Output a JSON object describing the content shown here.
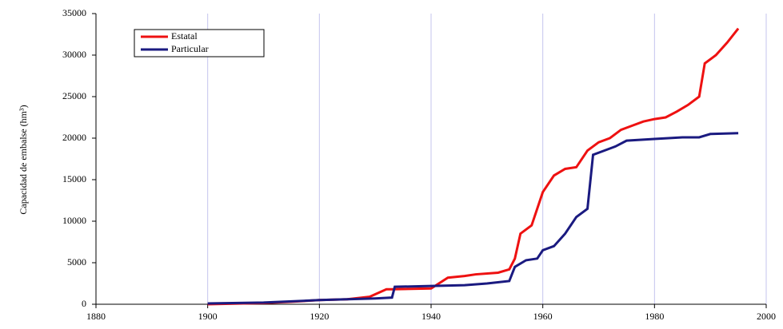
{
  "chart_data": {
    "type": "line",
    "y_label": "Capacidad de embalse (hm³)",
    "xlim": [
      1880,
      2000
    ],
    "xticks": [
      1880,
      1900,
      1920,
      1940,
      1960,
      1980,
      2000
    ],
    "ylim": [
      0,
      35000
    ],
    "yticks": [
      0,
      5000,
      10000,
      15000,
      20000,
      25000,
      30000,
      35000
    ],
    "grid": "x",
    "legend": "upper left",
    "series": [
      {
        "name": "Estatal",
        "color": "#ee1111",
        "x": [
          1900,
          1910,
          1915,
          1920,
          1925,
          1929,
          1932,
          1933,
          1940,
          1943,
          1946,
          1948,
          1952,
          1954,
          1955,
          1956,
          1958,
          1960,
          1962,
          1964,
          1966,
          1968,
          1970,
          1972,
          1974,
          1976,
          1978,
          1980,
          1982,
          1984,
          1986,
          1988,
          1989,
          1991,
          1993,
          1995
        ],
        "values": [
          0,
          150,
          300,
          500,
          600,
          900,
          1800,
          1800,
          1900,
          3200,
          3400,
          3600,
          3800,
          4200,
          5500,
          8500,
          9500,
          13500,
          15500,
          16300,
          16500,
          18500,
          19500,
          20000,
          21000,
          21500,
          22000,
          22300,
          22500,
          23200,
          24000,
          25000,
          29000,
          30000,
          31500,
          33200
        ]
      },
      {
        "name": "Particular",
        "color": "#1a1a80",
        "x": [
          1900,
          1910,
          1920,
          1930,
          1933,
          1933.5,
          1940,
          1946,
          1950,
          1954,
          1955,
          1957,
          1959,
          1960,
          1962,
          1964,
          1966,
          1968,
          1969,
          1971,
          1973,
          1975,
          1980,
          1985,
          1988,
          1990,
          1995
        ],
        "values": [
          100,
          200,
          500,
          700,
          800,
          2100,
          2200,
          2300,
          2500,
          2800,
          4500,
          5300,
          5500,
          6500,
          7000,
          8500,
          10500,
          11500,
          18000,
          18500,
          19000,
          19700,
          19900,
          20100,
          20100,
          20500,
          20600
        ]
      }
    ]
  }
}
